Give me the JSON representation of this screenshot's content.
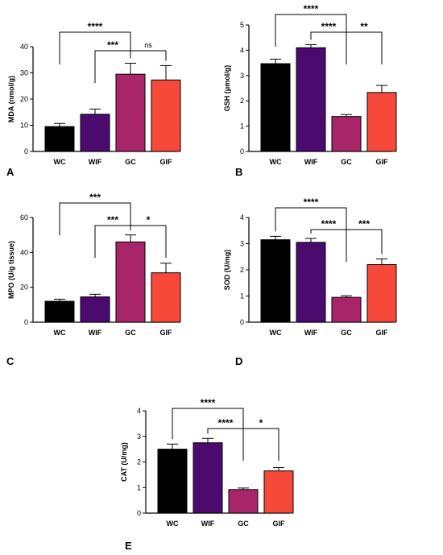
{
  "colors": {
    "WC": "#000000",
    "WIF": "#4b0a6e",
    "GC": "#a8256a",
    "GIF": "#f6493a"
  },
  "chart_data": [
    {
      "panel": "A",
      "type": "bar",
      "ylabel": "MDA (nmol/g)",
      "categories": [
        "WC",
        "WIF",
        "GC",
        "GIF"
      ],
      "values": [
        9.5,
        14.2,
        29.5,
        27.3
      ],
      "errors": [
        1.2,
        2.0,
        4.2,
        5.5
      ],
      "ylim": [
        0,
        40
      ],
      "yticks": [
        "0",
        "10",
        "20",
        "30",
        "40"
      ],
      "comparisons": [
        {
          "from": 0,
          "to": 2,
          "label": "****",
          "level": 2
        },
        {
          "from": 1,
          "to": 2,
          "label": "***",
          "level": 1
        },
        {
          "from": 2,
          "to": 3,
          "label": "ns",
          "level": 1
        }
      ]
    },
    {
      "panel": "B",
      "type": "bar",
      "ylabel": "GSH (μmol/g)",
      "categories": [
        "WC",
        "WIF",
        "GC",
        "GIF"
      ],
      "values": [
        3.47,
        4.1,
        1.38,
        2.33
      ],
      "errors": [
        0.18,
        0.12,
        0.08,
        0.28
      ],
      "ylim": [
        0,
        5
      ],
      "yticks": [
        "0",
        "1",
        "2",
        "3",
        "4",
        "5"
      ],
      "comparisons": [
        {
          "from": 0,
          "to": 2,
          "label": "****",
          "level": 2
        },
        {
          "from": 1,
          "to": 2,
          "label": "****",
          "level": 1
        },
        {
          "from": 2,
          "to": 3,
          "label": "**",
          "level": 1
        }
      ]
    },
    {
      "panel": "C",
      "type": "bar",
      "ylabel": "MPO (U/g tissue)",
      "categories": [
        "WC",
        "WIF",
        "GC",
        "GIF"
      ],
      "values": [
        12.0,
        14.5,
        46.0,
        28.3
      ],
      "errors": [
        1.2,
        1.5,
        4.0,
        5.5
      ],
      "ylim": [
        0,
        60
      ],
      "yticks": [
        "0",
        "20",
        "40",
        "60"
      ],
      "comparisons": [
        {
          "from": 0,
          "to": 2,
          "label": "***",
          "level": 2
        },
        {
          "from": 1,
          "to": 2,
          "label": "***",
          "level": 1
        },
        {
          "from": 2,
          "to": 3,
          "label": "*",
          "level": 1
        }
      ]
    },
    {
      "panel": "D",
      "type": "bar",
      "ylabel": "SOD (U/mg)",
      "categories": [
        "WC",
        "WIF",
        "GC",
        "GIF"
      ],
      "values": [
        3.15,
        3.05,
        0.95,
        2.2
      ],
      "errors": [
        0.13,
        0.15,
        0.06,
        0.22
      ],
      "ylim": [
        0,
        4
      ],
      "yticks": [
        "0",
        "1",
        "2",
        "3",
        "4"
      ],
      "comparisons": [
        {
          "from": 0,
          "to": 2,
          "label": "****",
          "level": 2
        },
        {
          "from": 1,
          "to": 2,
          "label": "****",
          "level": 1
        },
        {
          "from": 2,
          "to": 3,
          "label": "***",
          "level": 1
        }
      ]
    },
    {
      "panel": "E",
      "type": "bar",
      "ylabel": "CAT (U/mg)",
      "categories": [
        "WC",
        "WIF",
        "GC",
        "GIF"
      ],
      "values": [
        2.5,
        2.75,
        0.92,
        1.65
      ],
      "errors": [
        0.2,
        0.17,
        0.06,
        0.13
      ],
      "ylim": [
        0,
        4
      ],
      "yticks": [
        "0",
        "1",
        "2",
        "3",
        "4"
      ],
      "comparisons": [
        {
          "from": 0,
          "to": 2,
          "label": "****",
          "level": 2
        },
        {
          "from": 1,
          "to": 2,
          "label": "****",
          "level": 1
        },
        {
          "from": 2,
          "to": 3,
          "label": "*",
          "level": 1
        }
      ]
    }
  ]
}
